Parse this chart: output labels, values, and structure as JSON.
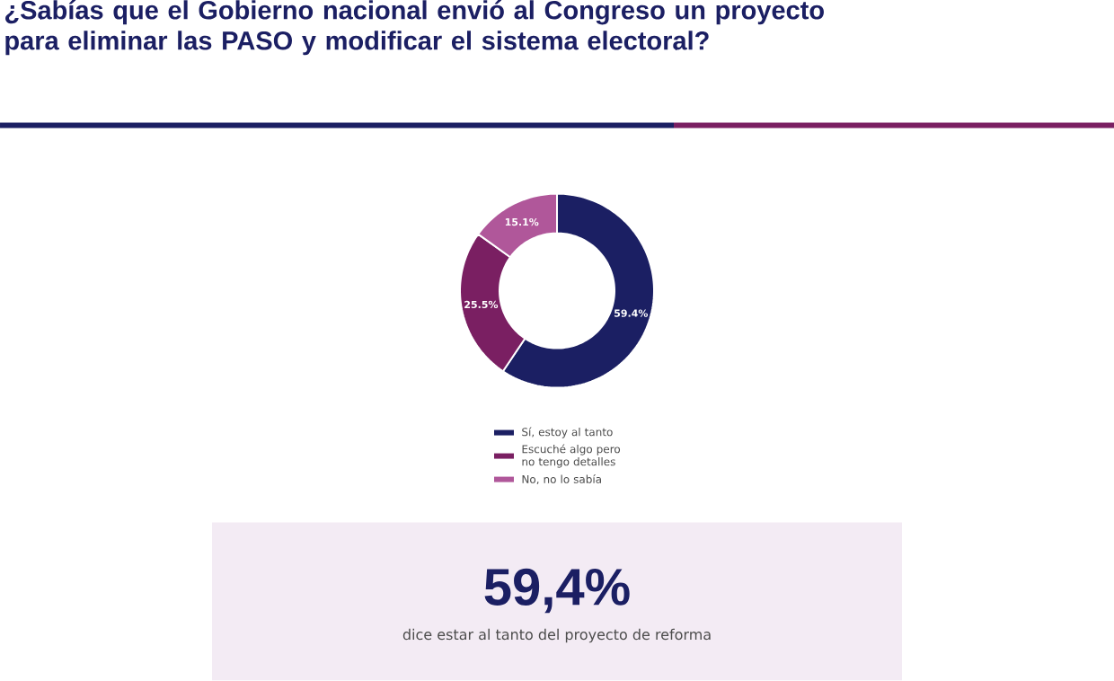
{
  "chart_data": {
    "type": "donut",
    "title": "¿Sabías que el Gobierno nacional envió al Congreso un proyecto para eliminar las PASO y modificar el sistema electoral?",
    "categories": [
      "Sí, estoy al tanto",
      "Escuché algo pero no tengo detalles",
      "No, no lo sabía"
    ],
    "values": [
      59.4,
      25.5,
      15.1
    ],
    "colors": [
      "#1b1f63",
      "#7a1f62",
      "#b0579a"
    ],
    "value_labels": [
      "59.4%",
      "25.5%",
      "15.1%"
    ],
    "legend": "bottom",
    "annotations": [
      "59,4%",
      "dice estar al tanto del proyecto de reforma"
    ]
  }
}
